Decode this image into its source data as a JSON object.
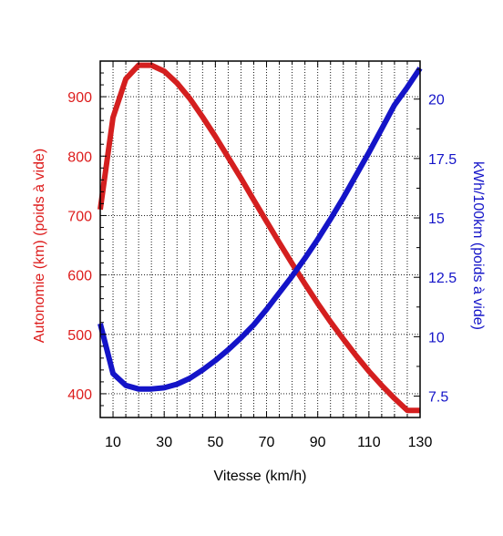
{
  "chart_data": {
    "type": "line",
    "title": "",
    "xlabel": "Vitesse (km/h)",
    "ylabel_left": "Autonomie (km) (poids à vide)",
    "ylabel_right": "kWh/100km (poids à vide)",
    "xlim": [
      5,
      130
    ],
    "ylim_left": [
      360,
      960
    ],
    "ylim_right": [
      6.6,
      21.6
    ],
    "x_ticks": [
      10,
      30,
      50,
      70,
      90,
      110,
      130
    ],
    "y_left_ticks": [
      400,
      500,
      600,
      700,
      800,
      900
    ],
    "y_right_ticks": [
      "7.5",
      "10",
      "12.5",
      "15",
      "17.5",
      "20"
    ],
    "grid": true,
    "colors": {
      "left": "#dd1c1c",
      "right": "#1414c8",
      "axes": "#000000",
      "grid": "#000000"
    },
    "series": [
      {
        "axis": "left",
        "color": "#d41f1f",
        "x": [
          5,
          10,
          15,
          20,
          25,
          30,
          35,
          40,
          45,
          50,
          55,
          60,
          65,
          70,
          75,
          80,
          85,
          90,
          95,
          100,
          105,
          110,
          115,
          120,
          125,
          130
        ],
        "y": [
          710,
          865,
          930,
          953,
          953,
          943,
          923,
          897,
          866,
          833,
          798,
          763,
          726,
          690,
          654,
          619,
          585,
          552,
          521,
          492,
          464,
          438,
          414,
          392,
          372,
          372
        ]
      },
      {
        "axis": "right",
        "color": "#1414c8",
        "x": [
          5,
          10,
          15,
          20,
          25,
          30,
          35,
          40,
          45,
          50,
          55,
          60,
          65,
          70,
          75,
          80,
          85,
          90,
          95,
          100,
          105,
          110,
          115,
          120,
          125,
          130
        ],
        "y": [
          10.55,
          8.45,
          7.95,
          7.8,
          7.8,
          7.85,
          8.0,
          8.25,
          8.6,
          9.0,
          9.45,
          9.95,
          10.5,
          11.15,
          11.85,
          12.55,
          13.3,
          14.1,
          14.95,
          15.85,
          16.8,
          17.75,
          18.75,
          19.75,
          20.5,
          21.3
        ]
      }
    ]
  }
}
